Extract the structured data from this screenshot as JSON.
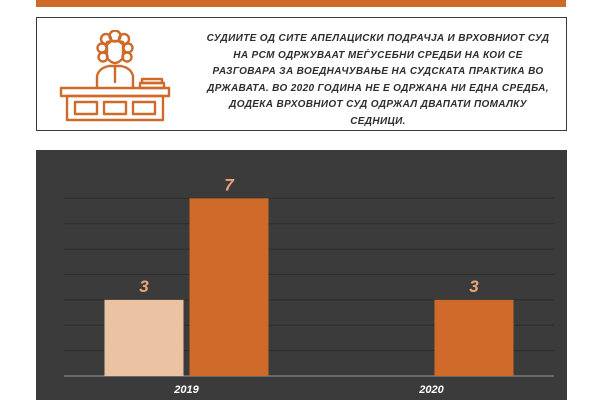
{
  "header": {
    "accent_color": "#cf6a2a"
  },
  "info_box": {
    "icon": "judge-at-bench-icon",
    "text": "СУДИИТЕ ОД СИТЕ АПЕЛАЦИСКИ ПОДРАЧЈА И ВРХОВНИОТ СУД НА РСМ ОДРЖУВААТ МЕЃУСЕБНИ СРЕДБИ НА КОИ СЕ РАЗГОВАРА ЗА ВОЕДНАЧУВАЊЕ НА СУДСКАТА ПРАКТИКА ВО ДРЖАВАТА. ВО 2020 ГОДИНА НЕ Е ОДРЖАНА НИ ЕДНА СРЕДБА, ДОДЕКА ВРХОВНИОТ СУД ОДРЖАЛ ДВАПАТИ ПОМАЛКУ СЕДНИЦИ."
  },
  "chart_data": {
    "type": "bar",
    "categories": [
      "2019",
      "2020"
    ],
    "series": [
      {
        "values": [
          3,
          null
        ],
        "color": "#ebc3a3"
      },
      {
        "values": [
          7,
          3
        ],
        "color": "#cf6a2a"
      }
    ],
    "data_labels": true,
    "label_color": "#e8a57c",
    "ylim": [
      0,
      7.8
    ],
    "grid": true,
    "background": "#3b3b3b"
  }
}
